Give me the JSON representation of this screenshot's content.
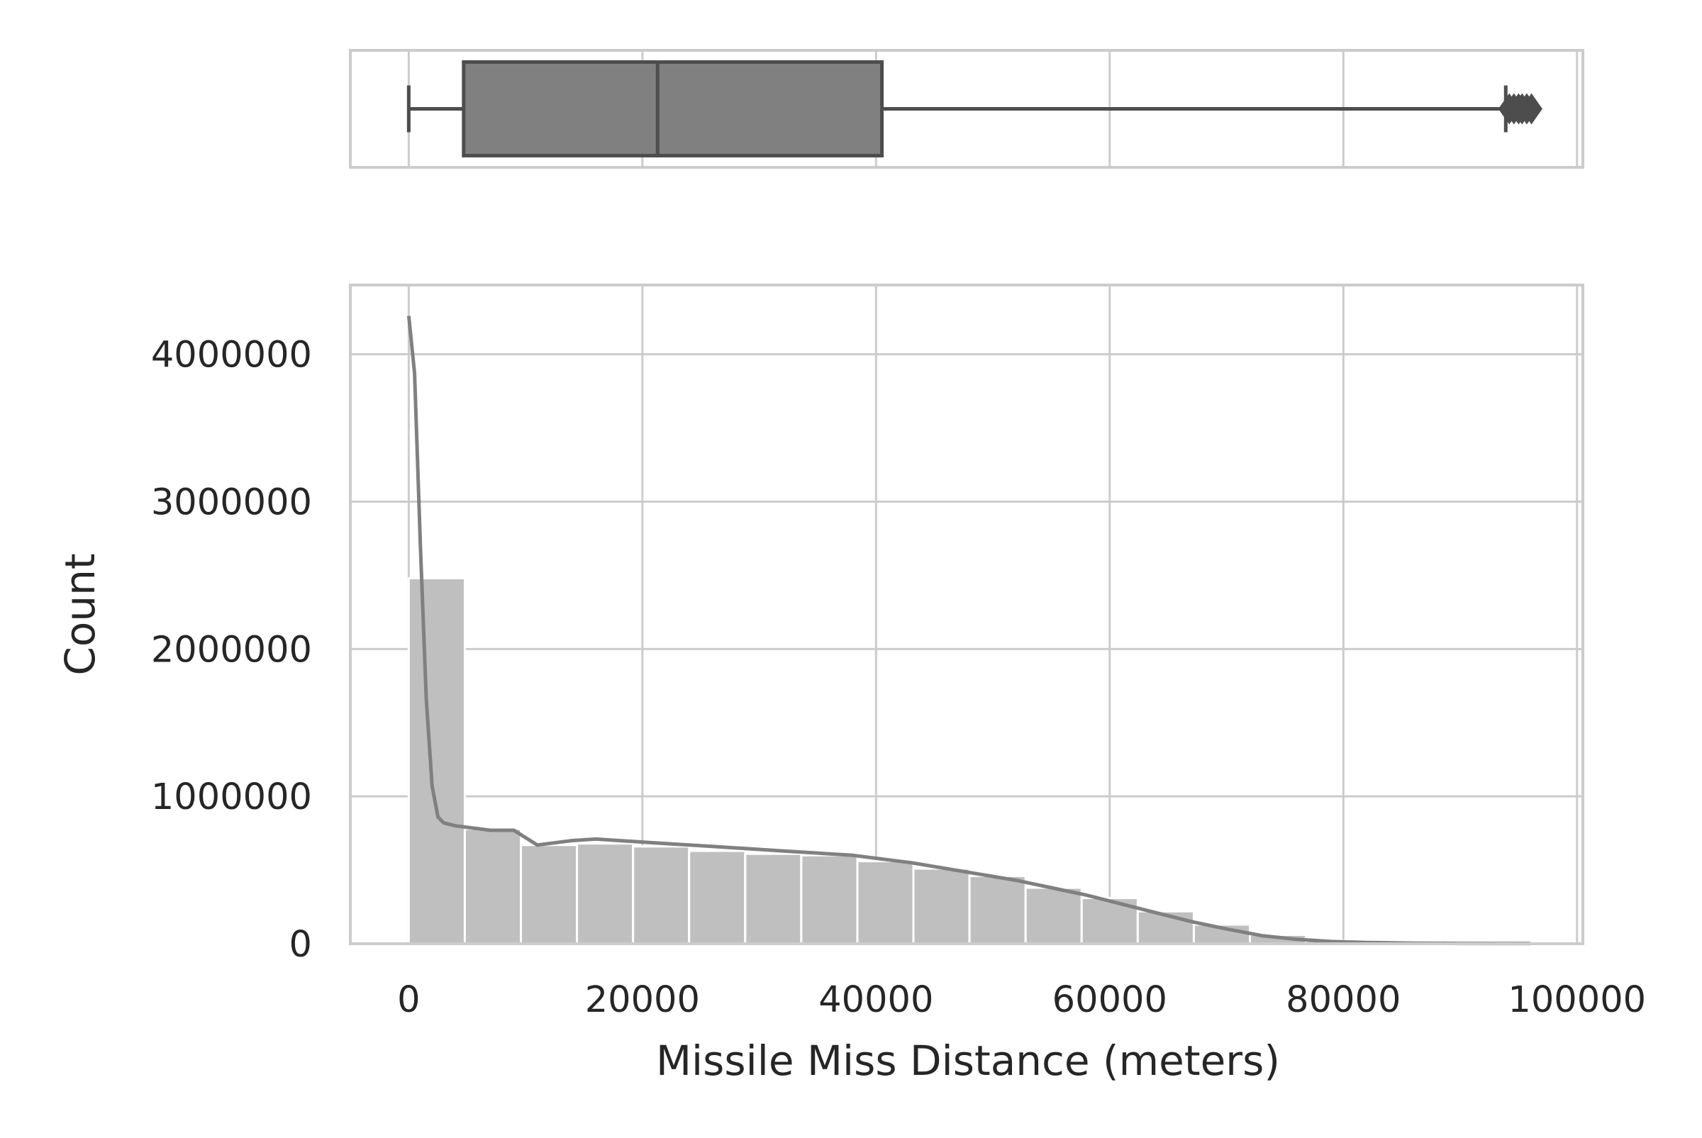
{
  "chart_data": [
    {
      "type": "box",
      "orientation": "horizontal",
      "whisker_low": 0,
      "q1": 4700,
      "median": 21300,
      "q3": 40500,
      "whisker_high": 93900,
      "outliers": [
        94200,
        94600,
        95000,
        95300,
        95700,
        96100
      ],
      "xlim": [
        -5000,
        100500
      ],
      "grid": true,
      "colors": {
        "box_fill": "#808080",
        "box_edge": "#4d4d4d",
        "grid": "#cccccc"
      }
    },
    {
      "type": "histogram",
      "xlabel": "Missile Miss Distance (meters)",
      "ylabel": "Count",
      "xlim": [
        -5000,
        100500
      ],
      "ylim": [
        0,
        4470000
      ],
      "x_ticks": [
        0,
        20000,
        40000,
        60000,
        80000,
        100000
      ],
      "x_tick_labels": [
        "0",
        "20000",
        "40000",
        "60000",
        "80000",
        "100000"
      ],
      "y_ticks": [
        0,
        1000000,
        2000000,
        3000000,
        4000000
      ],
      "y_tick_labels": [
        "0",
        "1000000",
        "2000000",
        "3000000",
        "4000000"
      ],
      "grid": true,
      "bins": {
        "edges": [
          0,
          4800,
          9600,
          14400,
          19200,
          24000,
          28800,
          33600,
          38400,
          43200,
          48000,
          52800,
          57600,
          62400,
          67200,
          72000,
          76800,
          81600,
          86400,
          91200,
          96000
        ],
        "counts": [
          2480000,
          780000,
          670000,
          680000,
          660000,
          630000,
          610000,
          600000,
          560000,
          510000,
          460000,
          380000,
          310000,
          220000,
          130000,
          60000,
          20000,
          8000,
          3000,
          1000
        ]
      },
      "kde": {
        "x": [
          0,
          500,
          1000,
          1500,
          2000,
          2500,
          3000,
          4000,
          5000,
          6000,
          7000,
          8000,
          9000,
          10000,
          11000,
          12000,
          14000,
          16000,
          18000,
          20000,
          22000,
          24000,
          26000,
          28000,
          30000,
          32000,
          34000,
          36000,
          38000,
          40000,
          43000,
          46000,
          49000,
          52000,
          55000,
          58000,
          61000,
          64000,
          67000,
          70000,
          73000,
          76000,
          79000,
          82000,
          86000,
          90000,
          96000
        ],
        "y": [
          4260000,
          3870000,
          2700000,
          1660000,
          1070000,
          860000,
          820000,
          800000,
          790000,
          780000,
          770000,
          770000,
          770000,
          720000,
          670000,
          680000,
          700000,
          710000,
          700000,
          690000,
          680000,
          670000,
          660000,
          650000,
          640000,
          630000,
          620000,
          610000,
          600000,
          580000,
          550000,
          510000,
          470000,
          430000,
          380000,
          330000,
          270000,
          210000,
          150000,
          100000,
          55000,
          30000,
          15000,
          8000,
          4000,
          2000,
          1000
        ]
      },
      "colors": {
        "bar": "#bfbfbf",
        "kde_line": "#808080",
        "grid": "#cccccc",
        "spine": "#cccccc"
      }
    }
  ]
}
